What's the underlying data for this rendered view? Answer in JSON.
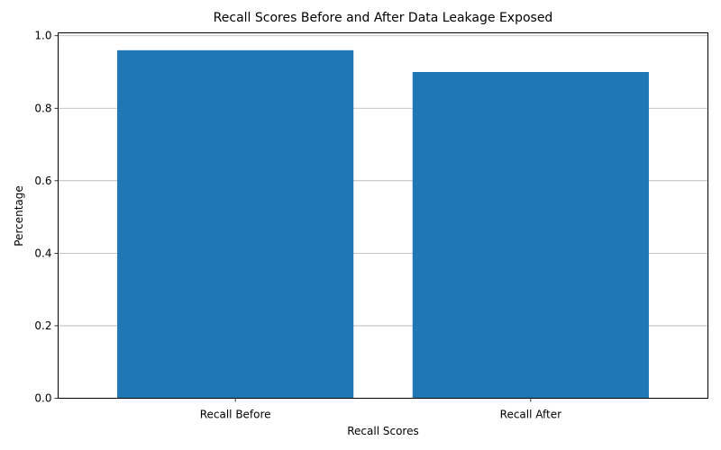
{
  "chart_data": {
    "type": "bar",
    "title": "Recall Scores Before and After Data Leakage Exposed",
    "xlabel": "Recall Scores",
    "ylabel": "Percentage",
    "categories": [
      "Recall Before",
      "Recall After"
    ],
    "values": [
      0.96,
      0.9
    ],
    "ylim": [
      0,
      1.0
    ],
    "yticks": [
      "0.0",
      "0.2",
      "0.4",
      "0.6",
      "0.8",
      "1.0"
    ],
    "grid": "horizontal",
    "bar_color": "#1f77b4"
  }
}
